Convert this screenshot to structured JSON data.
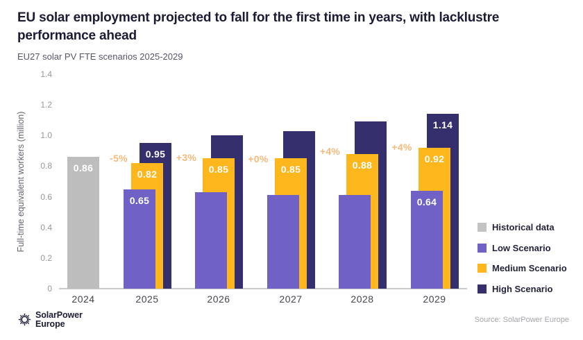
{
  "chart_data": {
    "type": "bar",
    "title": "EU solar employment projected to fall for the first time in years, with lacklustre performance ahead",
    "subtitle": "EU27 solar PV FTE scenarios 2025-2029",
    "ylabel": "Full-time equivalent workers (million)",
    "ylim": [
      0,
      1.4
    ],
    "yticks": [
      "1.4",
      "1.2",
      "1.0",
      "0.8",
      "0.6",
      "0.4",
      "0.2",
      "0"
    ],
    "grid": false,
    "legend_position": "right",
    "categories": [
      "2024",
      "2025",
      "2026",
      "2027",
      "2028",
      "2029"
    ],
    "series": [
      {
        "name": "Historical data",
        "color": "#bdbdbd",
        "values": [
          0.86,
          null,
          null,
          null,
          null,
          null
        ],
        "labels": [
          "0.86",
          null,
          null,
          null,
          null,
          null
        ]
      },
      {
        "name": "Low Scenario",
        "color": "#6f61c6",
        "values": [
          null,
          0.65,
          0.63,
          0.61,
          0.61,
          0.64
        ],
        "labels": [
          null,
          "0.65",
          null,
          null,
          null,
          "0.64"
        ]
      },
      {
        "name": "Medium Scenario",
        "color": "#fdb71c",
        "values": [
          null,
          0.82,
          0.85,
          0.85,
          0.88,
          0.92
        ],
        "labels": [
          null,
          "0.82",
          "0.85",
          "0.85",
          "0.88",
          "0.92"
        ]
      },
      {
        "name": "High Scenario",
        "color": "#362f6e",
        "values": [
          null,
          0.95,
          1.0,
          1.03,
          1.09,
          1.14
        ],
        "labels": [
          null,
          "0.95",
          null,
          null,
          null,
          "1.14"
        ]
      }
    ],
    "annotations": [
      {
        "label": "-5%",
        "between": [
          "2024",
          "2025"
        ]
      },
      {
        "label": "+3%",
        "between": [
          "2025",
          "2026"
        ]
      },
      {
        "label": "+0%",
        "between": [
          "2026",
          "2027"
        ]
      },
      {
        "label": "+4%",
        "between": [
          "2027",
          "2028"
        ]
      },
      {
        "label": "+4%",
        "between": [
          "2028",
          "2029"
        ]
      }
    ],
    "annotation_color": "#f6b97c",
    "legend": [
      {
        "label": "Historical data",
        "color": "#c3c3c3"
      },
      {
        "label": "Low Scenario",
        "color": "#6f61c6"
      },
      {
        "label": "Medium Scenario",
        "color": "#fdb71c"
      },
      {
        "label": "High Scenario",
        "color": "#362f6e"
      }
    ]
  },
  "footer": {
    "logo_line1": "SolarPower",
    "logo_line2": "Europe",
    "source": "Source: SolarPower Europe"
  }
}
